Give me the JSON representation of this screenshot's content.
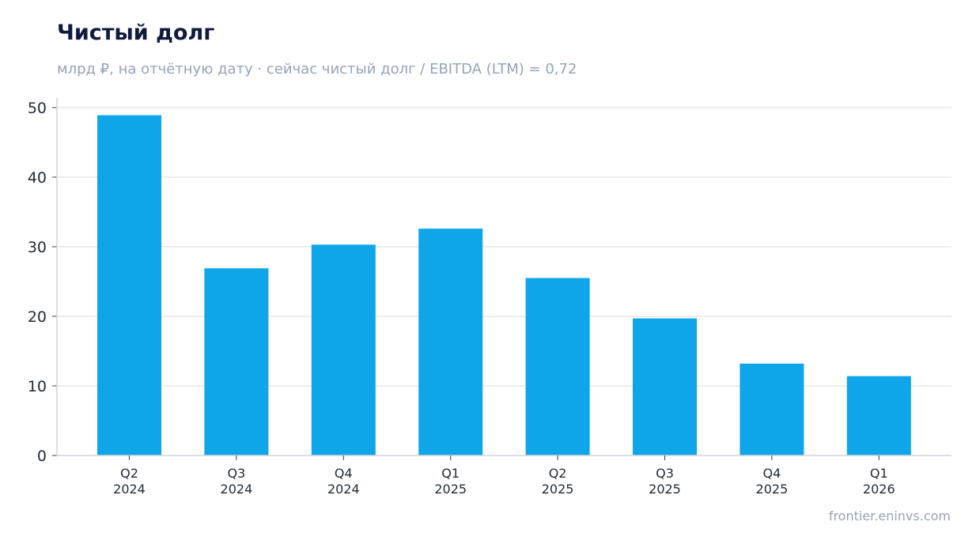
{
  "title": "Чистый долг",
  "subtitle": "млрд ₽, на отчётную дату · сейчас чистый долг / EBITDA (LTM) = 0,72",
  "footer": "frontier.eninvs.com",
  "colors": {
    "bar": "#0ea5e9",
    "grid": "#e5e7eb",
    "axis": "#d1d5db",
    "title": "#0f1b3d",
    "muted": "#94a3b8"
  },
  "chart_data": {
    "type": "bar",
    "categories": [
      [
        "Q2",
        "2024"
      ],
      [
        "Q3",
        "2024"
      ],
      [
        "Q4",
        "2024"
      ],
      [
        "Q1",
        "2025"
      ],
      [
        "Q2",
        "2025"
      ],
      [
        "Q3",
        "2025"
      ],
      [
        "Q4",
        "2025"
      ],
      [
        "Q1",
        "2026"
      ]
    ],
    "values": [
      48.9,
      26.9,
      30.3,
      32.6,
      25.5,
      19.7,
      13.2,
      11.4
    ],
    "ylim": [
      0,
      50
    ],
    "yticks": [
      0,
      10,
      20,
      30,
      40,
      50
    ],
    "grid": true
  }
}
